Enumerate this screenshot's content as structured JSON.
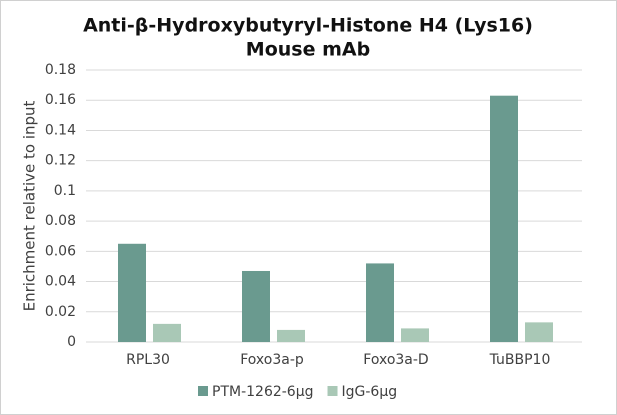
{
  "chart_data": {
    "type": "bar",
    "title": [
      "Anti-β-Hydroxybutyryl-Histone H4 (Lys16)",
      "Mouse mAb"
    ],
    "y_label": "Enrichment relative to input",
    "categories": [
      "RPL30",
      "Foxo3a-p",
      "Foxo3a-D",
      "TuBBP10"
    ],
    "series": [
      {
        "name": "PTM-1262-6μg",
        "color": "#6a9a8f",
        "values": [
          0.065,
          0.047,
          0.052,
          0.163
        ]
      },
      {
        "name": "IgG-6μg",
        "color": "#a9c8b6",
        "values": [
          0.012,
          0.008,
          0.009,
          0.013
        ]
      }
    ],
    "ylim": [
      0,
      0.18
    ],
    "yticks": [
      0,
      0.02,
      0.04,
      0.06,
      0.08,
      0.1,
      0.12,
      0.14,
      0.16,
      0.18
    ],
    "grid": true,
    "legend": "bottom"
  }
}
